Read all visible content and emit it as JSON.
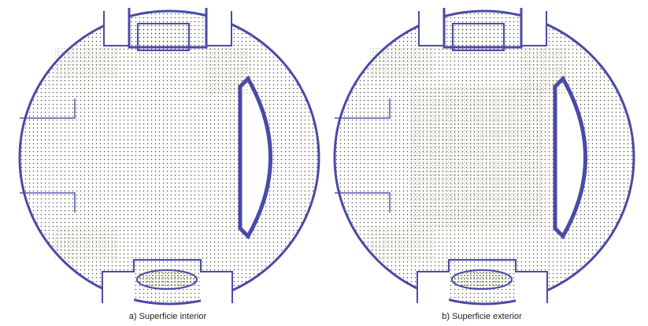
{
  "figure": {
    "panels": [
      {
        "caption": "a) Superficie interior"
      },
      {
        "caption": "b) Superficie exterior"
      }
    ]
  }
}
